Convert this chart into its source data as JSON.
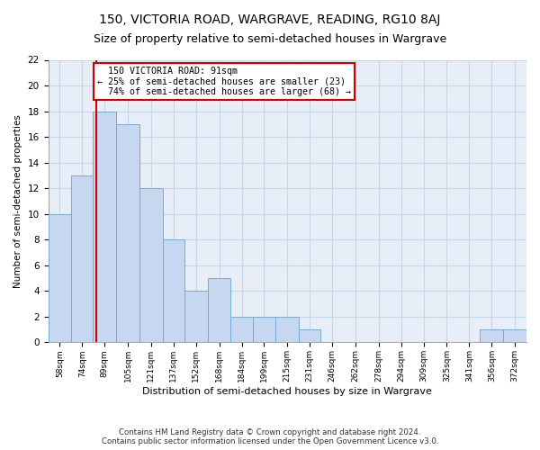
{
  "title": "150, VICTORIA ROAD, WARGRAVE, READING, RG10 8AJ",
  "subtitle": "Size of property relative to semi-detached houses in Wargrave",
  "xlabel": "Distribution of semi-detached houses by size in Wargrave",
  "ylabel": "Number of semi-detached properties",
  "footer_line1": "Contains HM Land Registry data © Crown copyright and database right 2024.",
  "footer_line2": "Contains public sector information licensed under the Open Government Licence v3.0.",
  "property_label": "150 VICTORIA ROAD: 91sqm",
  "smaller_pct": "25% of semi-detached houses are smaller (23)",
  "larger_pct": "74% of semi-detached houses are larger (68)",
  "property_line_x": 91,
  "categories": [
    "58sqm",
    "74sqm",
    "89sqm",
    "105sqm",
    "121sqm",
    "137sqm",
    "152sqm",
    "168sqm",
    "184sqm",
    "199sqm",
    "215sqm",
    "231sqm",
    "246sqm",
    "262sqm",
    "278sqm",
    "294sqm",
    "309sqm",
    "325sqm",
    "341sqm",
    "356sqm",
    "372sqm"
  ],
  "bin_edges": [
    58,
    74,
    89,
    105,
    121,
    137,
    152,
    168,
    184,
    199,
    215,
    231,
    246,
    262,
    278,
    294,
    309,
    325,
    341,
    356,
    372,
    388
  ],
  "values": [
    10,
    13,
    18,
    17,
    12,
    8,
    4,
    5,
    2,
    2,
    2,
    1,
    0,
    0,
    0,
    0,
    0,
    0,
    0,
    1,
    1
  ],
  "bar_color": "#c5d8f0",
  "bar_edge_color": "#7aaad0",
  "grid_color": "#c8d4e8",
  "bg_color": "#e8eef8",
  "annotation_box_color": "#ffffff",
  "annotation_box_edge": "#cc0000",
  "property_line_color": "#cc0000",
  "ylim": [
    0,
    22
  ],
  "yticks": [
    0,
    2,
    4,
    6,
    8,
    10,
    12,
    14,
    16,
    18,
    20,
    22
  ],
  "title_fontsize": 10,
  "subtitle_fontsize": 9
}
